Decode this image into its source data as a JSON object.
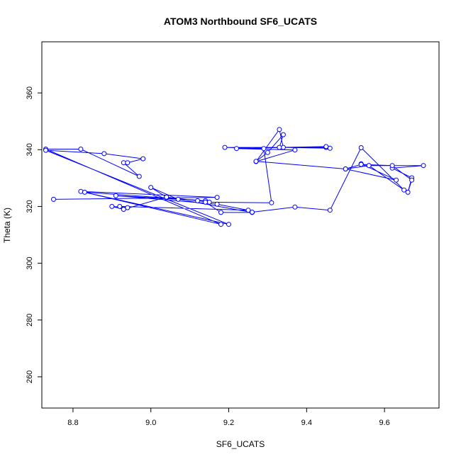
{
  "chart_data": {
    "type": "line",
    "title": "ATOM3 Northbound SF6_UCATS",
    "xlabel": "SF6_UCATS",
    "ylabel": "Theta (K)",
    "xlim": [
      8.72,
      9.74
    ],
    "ylim": [
      249,
      378
    ],
    "x_ticks": [
      {
        "value": 8.8,
        "label": "8.8"
      },
      {
        "value": 9.0,
        "label": "9.0"
      },
      {
        "value": 9.2,
        "label": "9.2"
      },
      {
        "value": 9.4,
        "label": "9.4"
      },
      {
        "value": 9.6,
        "label": "9.6"
      }
    ],
    "y_ticks": [
      {
        "value": 260,
        "label": "260"
      },
      {
        "value": 280,
        "label": "280"
      },
      {
        "value": 300,
        "label": "300"
      },
      {
        "value": 320,
        "label": "320"
      },
      {
        "value": 340,
        "label": "340"
      },
      {
        "value": 360,
        "label": "360"
      }
    ],
    "grid": false,
    "series": [
      {
        "color": "#0000ff",
        "marker": "open-circle",
        "points": [
          [
            8.75,
            322.5
          ],
          [
            9.17,
            323.2
          ],
          [
            8.82,
            325.3
          ],
          [
            9.18,
            313.7
          ],
          [
            8.73,
            340.2
          ],
          [
            8.82,
            340.2
          ],
          [
            8.97,
            330.6
          ],
          [
            8.93,
            335.4
          ],
          [
            8.94,
            335.4
          ],
          [
            8.98,
            336.8
          ],
          [
            8.88,
            338.6
          ],
          [
            8.73,
            339.8
          ],
          [
            9.2,
            313.7
          ],
          [
            8.83,
            325.0
          ],
          [
            9.14,
            322.0
          ],
          [
            9.15,
            321.5
          ],
          [
            9.12,
            322.0
          ],
          [
            9.04,
            323.3
          ],
          [
            9.0,
            326.7
          ],
          [
            9.07,
            322.5
          ],
          [
            8.91,
            323.8
          ],
          [
            9.17,
            320.8
          ],
          [
            9.25,
            318.7
          ],
          [
            8.92,
            320.0
          ],
          [
            8.94,
            319.6
          ],
          [
            8.9,
            320.0
          ],
          [
            8.93,
            319.0
          ],
          [
            9.04,
            323.3
          ],
          [
            9.26,
            317.9
          ],
          [
            9.18,
            317.9
          ],
          [
            9.14,
            321.5
          ],
          [
            9.31,
            321.3
          ],
          [
            9.29,
            340.4
          ],
          [
            9.19,
            340.8
          ],
          [
            9.45,
            340.8
          ],
          [
            9.46,
            340.5
          ],
          [
            9.34,
            340.8
          ],
          [
            9.33,
            347.1
          ],
          [
            9.27,
            335.8
          ],
          [
            9.37,
            339.9
          ],
          [
            9.22,
            340.4
          ],
          [
            9.45,
            341.1
          ],
          [
            9.33,
            340.8
          ],
          [
            9.34,
            345.3
          ],
          [
            9.3,
            339.0
          ],
          [
            9.27,
            335.9
          ],
          [
            9.5,
            333.2
          ],
          [
            9.63,
            329.3
          ],
          [
            9.54,
            335.0
          ],
          [
            9.56,
            334.4
          ],
          [
            9.7,
            334.4
          ],
          [
            9.62,
            333.5
          ],
          [
            9.67,
            330.1
          ],
          [
            9.66,
            325.0
          ],
          [
            9.67,
            329.3
          ],
          [
            9.62,
            334.4
          ],
          [
            9.54,
            334.8
          ],
          [
            9.5,
            333.2
          ],
          [
            9.56,
            334.4
          ],
          [
            9.65,
            325.8
          ],
          [
            9.54,
            340.7
          ],
          [
            9.46,
            318.7
          ],
          [
            9.37,
            319.8
          ],
          [
            9.26,
            318.0
          ]
        ]
      }
    ]
  }
}
